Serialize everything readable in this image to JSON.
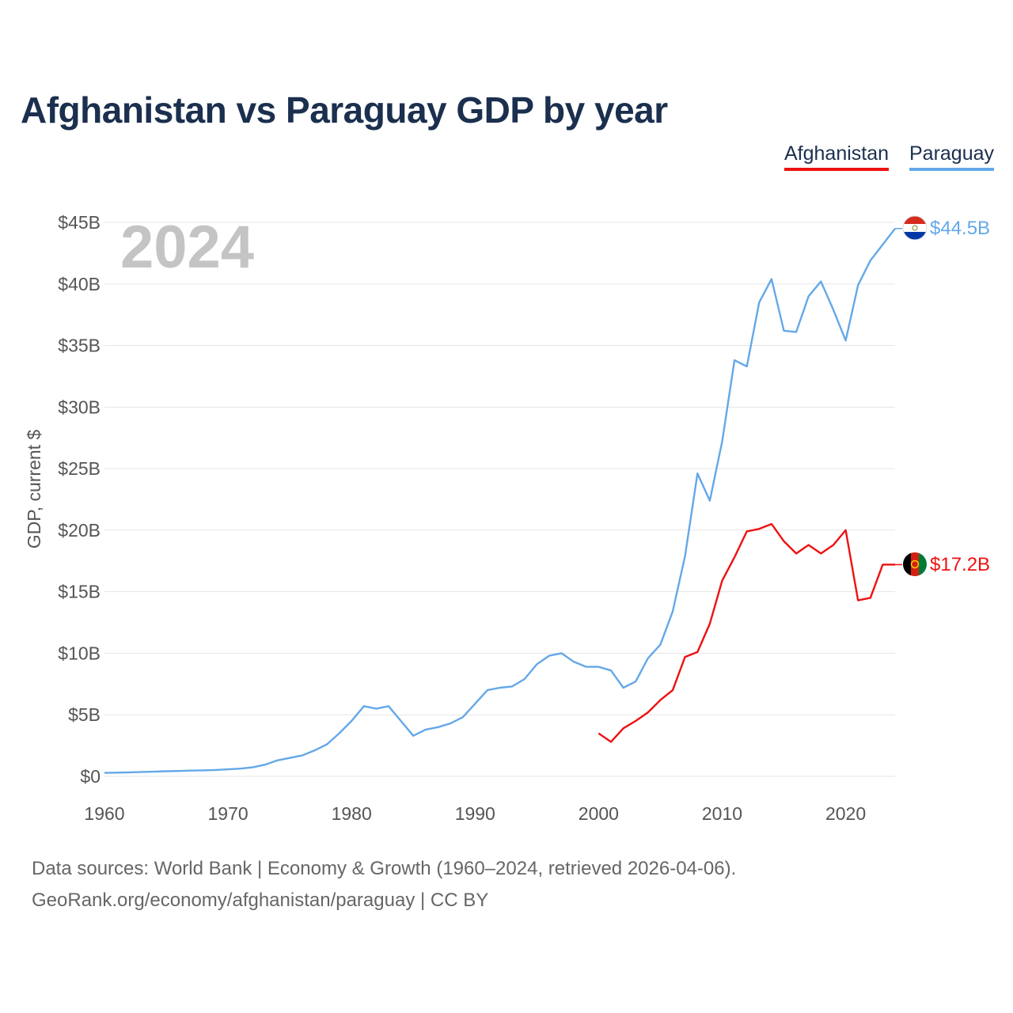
{
  "title": "Afghanistan vs Paraguay GDP by year",
  "legend": {
    "afghanistan": "Afghanistan",
    "paraguay": "Paraguay"
  },
  "year_watermark": "2024",
  "colors": {
    "afghanistan": "#ee1111",
    "paraguay": "#64a8e8",
    "title": "#1b2f4e",
    "grid": "#e6e6e6",
    "tick": "#555555"
  },
  "footer": {
    "line1": "Data sources: World Bank | Economy & Growth (1960–2024, retrieved 2026-04-06).",
    "line2": "GeoRank.org/economy/afghanistan/paraguay | CC BY"
  },
  "chart_data": {
    "type": "line",
    "title": "Afghanistan vs Paraguay GDP by year",
    "xlabel": "",
    "ylabel": "GDP, current $",
    "xlim": [
      1960,
      2024
    ],
    "ylim": [
      0,
      45
    ],
    "y_unit": "billion USD",
    "grid": true,
    "legend_position": "top-right",
    "x_ticks": [
      1960,
      1970,
      1980,
      1990,
      2000,
      2010,
      2020
    ],
    "x_tick_labels": [
      "1960",
      "1970",
      "1980",
      "1990",
      "2000",
      "2010",
      "2020"
    ],
    "y_ticks": [
      0,
      5,
      10,
      15,
      20,
      25,
      30,
      35,
      40,
      45
    ],
    "y_tick_labels": [
      "$0",
      "$5B",
      "$10B",
      "$15B",
      "$20B",
      "$25B",
      "$30B",
      "$35B",
      "$40B",
      "$45B"
    ],
    "series": [
      {
        "name": "Paraguay",
        "key": "paraguay",
        "end_label": "$44.5B",
        "x": [
          1960,
          1961,
          1962,
          1963,
          1964,
          1965,
          1966,
          1967,
          1968,
          1969,
          1970,
          1971,
          1972,
          1973,
          1974,
          1975,
          1976,
          1977,
          1978,
          1979,
          1980,
          1981,
          1982,
          1983,
          1984,
          1985,
          1986,
          1987,
          1988,
          1989,
          1990,
          1991,
          1992,
          1993,
          1994,
          1995,
          1996,
          1997,
          1998,
          1999,
          2000,
          2001,
          2002,
          2003,
          2004,
          2005,
          2006,
          2007,
          2008,
          2009,
          2010,
          2011,
          2012,
          2013,
          2014,
          2015,
          2016,
          2017,
          2018,
          2019,
          2020,
          2021,
          2022,
          2023,
          2024
        ],
        "values": [
          0.28,
          0.3,
          0.33,
          0.36,
          0.38,
          0.42,
          0.44,
          0.47,
          0.49,
          0.52,
          0.57,
          0.63,
          0.73,
          0.95,
          1.3,
          1.5,
          1.7,
          2.1,
          2.6,
          3.5,
          4.5,
          5.7,
          5.5,
          5.7,
          4.5,
          3.3,
          3.8,
          4.0,
          4.3,
          4.8,
          5.9,
          7.0,
          7.2,
          7.3,
          7.9,
          9.1,
          9.8,
          10.0,
          9.3,
          8.9,
          8.9,
          8.6,
          7.2,
          7.7,
          9.6,
          10.7,
          13.4,
          17.9,
          24.6,
          22.4,
          27.2,
          33.8,
          33.3,
          38.5,
          40.4,
          36.2,
          36.1,
          39.0,
          40.2,
          37.9,
          35.4,
          39.9,
          41.9,
          43.2,
          44.5
        ]
      },
      {
        "name": "Afghanistan",
        "key": "afghanistan",
        "end_label": "$17.2B",
        "x": [
          2000,
          2001,
          2002,
          2003,
          2004,
          2005,
          2006,
          2007,
          2008,
          2009,
          2010,
          2011,
          2012,
          2013,
          2014,
          2015,
          2016,
          2017,
          2018,
          2019,
          2020,
          2021,
          2022,
          2023,
          2024
        ],
        "values": [
          3.5,
          2.8,
          3.9,
          4.5,
          5.2,
          6.2,
          7.0,
          9.7,
          10.1,
          12.4,
          15.9,
          17.8,
          19.9,
          20.1,
          20.5,
          19.1,
          18.1,
          18.8,
          18.1,
          18.8,
          20.0,
          14.3,
          14.5,
          17.2,
          17.2
        ]
      }
    ]
  }
}
